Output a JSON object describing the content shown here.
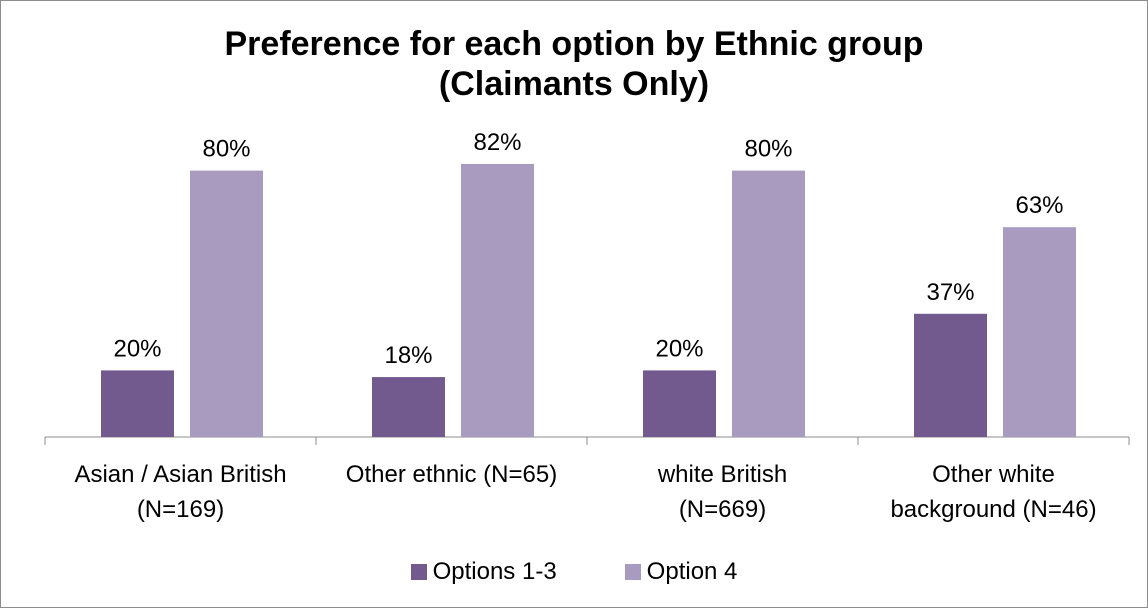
{
  "chart_data": {
    "type": "bar",
    "title": [
      "Preference for each option by Ethnic group",
      "(Claimants Only)"
    ],
    "categories": [
      [
        "Asian / Asian British",
        "(N=169)"
      ],
      [
        "Other ethnic (N=65)"
      ],
      [
        "white British",
        "(N=669)"
      ],
      [
        "Other white",
        "background (N=46)"
      ]
    ],
    "series": [
      {
        "name": "Options 1-3",
        "values": [
          20,
          18,
          20,
          37
        ],
        "labels": [
          "20%",
          "18%",
          "20%",
          "37%"
        ],
        "color": "#725a8f"
      },
      {
        "name": "Option 4",
        "values": [
          80,
          82,
          80,
          63
        ],
        "labels": [
          "80%",
          "82%",
          "80%",
          "63%"
        ],
        "color": "#a99bbf"
      }
    ],
    "ylim": [
      0,
      100
    ],
    "grid": false,
    "legend_position": "bottom"
  }
}
